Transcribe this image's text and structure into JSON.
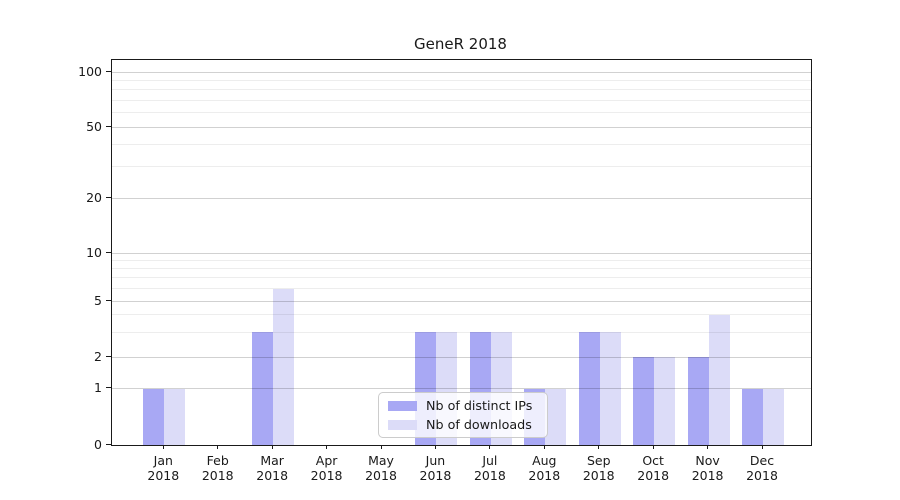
{
  "chart_data": {
    "type": "bar",
    "title": "GeneR 2018",
    "categories": [
      "Jan",
      "Feb",
      "Mar",
      "Apr",
      "May",
      "Jun",
      "Jul",
      "Aug",
      "Sep",
      "Oct",
      "Nov",
      "Dec"
    ],
    "category_year_sublabel": "2018",
    "series": [
      {
        "name": "Nb of distinct IPs",
        "color": "#a8a8f4",
        "values": [
          1,
          0,
          3,
          0,
          0,
          3,
          3,
          1,
          3,
          2,
          2,
          1
        ]
      },
      {
        "name": "Nb of downloads",
        "color": "#dcdcf8",
        "values": [
          1,
          0,
          6,
          0,
          0,
          3,
          3,
          1,
          3,
          2,
          4,
          1
        ]
      }
    ],
    "y_axis": {
      "scale": "symlog",
      "range": [
        0,
        100
      ],
      "major_ticks": [
        0,
        1,
        2,
        5,
        10,
        20,
        50,
        100
      ],
      "minor_gridline_values": [
        3,
        4,
        6,
        7,
        8,
        9,
        30,
        40,
        60,
        70,
        80,
        90
      ],
      "grid": "on"
    },
    "x_axis": {
      "tick_label_lines": 2
    },
    "legend": {
      "position": "lower-center",
      "frame": "rounded, semi-transparent white"
    }
  }
}
